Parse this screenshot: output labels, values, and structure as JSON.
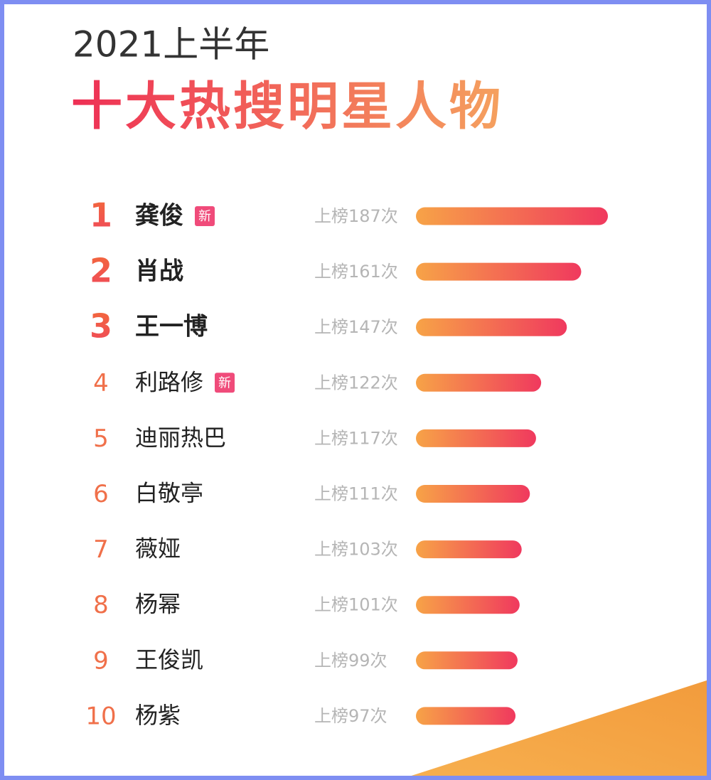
{
  "chart_data": {
    "type": "bar",
    "orientation": "horizontal",
    "title": "2021上半年",
    "subtitle": "十大热搜明星人物",
    "ranks": [
      "1",
      "2",
      "3",
      "4",
      "5",
      "6",
      "7",
      "8",
      "9",
      "10"
    ],
    "categories": [
      "龚俊",
      "肖战",
      "王一博",
      "利路修",
      "迪丽热巴",
      "白敬亭",
      "薇娅",
      "杨幂",
      "王俊凯",
      "杨紫"
    ],
    "badges": [
      "新",
      null,
      null,
      "新",
      null,
      null,
      null,
      null,
      null,
      null
    ],
    "values": [
      187,
      161,
      147,
      122,
      117,
      111,
      103,
      101,
      99,
      97
    ],
    "value_labels": [
      "上榜187次",
      "上榜161次",
      "上榜147次",
      "上榜122次",
      "上榜117次",
      "上榜111次",
      "上榜103次",
      "上榜101次",
      "上榜99次",
      "上榜97次"
    ],
    "colors": [
      "#f7a347",
      "#f0395e"
    ]
  }
}
